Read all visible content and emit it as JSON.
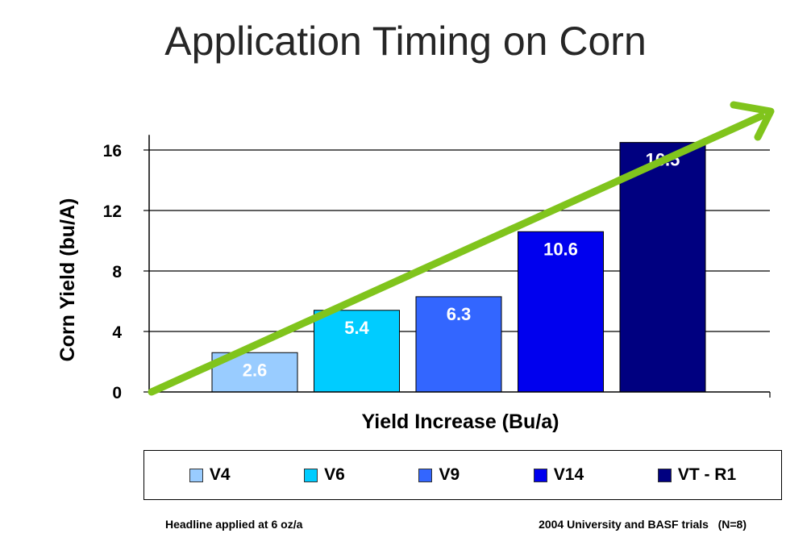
{
  "chart_data": {
    "type": "bar",
    "title": "Application Timing on Corn",
    "xlabel": "Yield Increase (Bu/a)",
    "ylabel": "Corn Yield (bu/A)",
    "ylim": [
      0,
      17
    ],
    "yticks": [
      0,
      4,
      8,
      12,
      16
    ],
    "categories": [
      "V4",
      "V6",
      "V9",
      "V14",
      "VT - R1"
    ],
    "values": [
      2.6,
      5.4,
      6.3,
      10.6,
      16.5
    ],
    "data_labels": [
      "2.6",
      "5.4",
      "6.3",
      "10.6",
      "16.5"
    ],
    "colors": [
      "#99ccff",
      "#00ccff",
      "#3366ff",
      "#0000ee",
      "#000080"
    ],
    "grid": true,
    "legend_position": "bottom",
    "trend_arrow_color": "#80c41c"
  },
  "footnotes": {
    "left": "Headline applied at 6 oz/a",
    "right": "2004 University and BASF trials   (N=8)"
  }
}
